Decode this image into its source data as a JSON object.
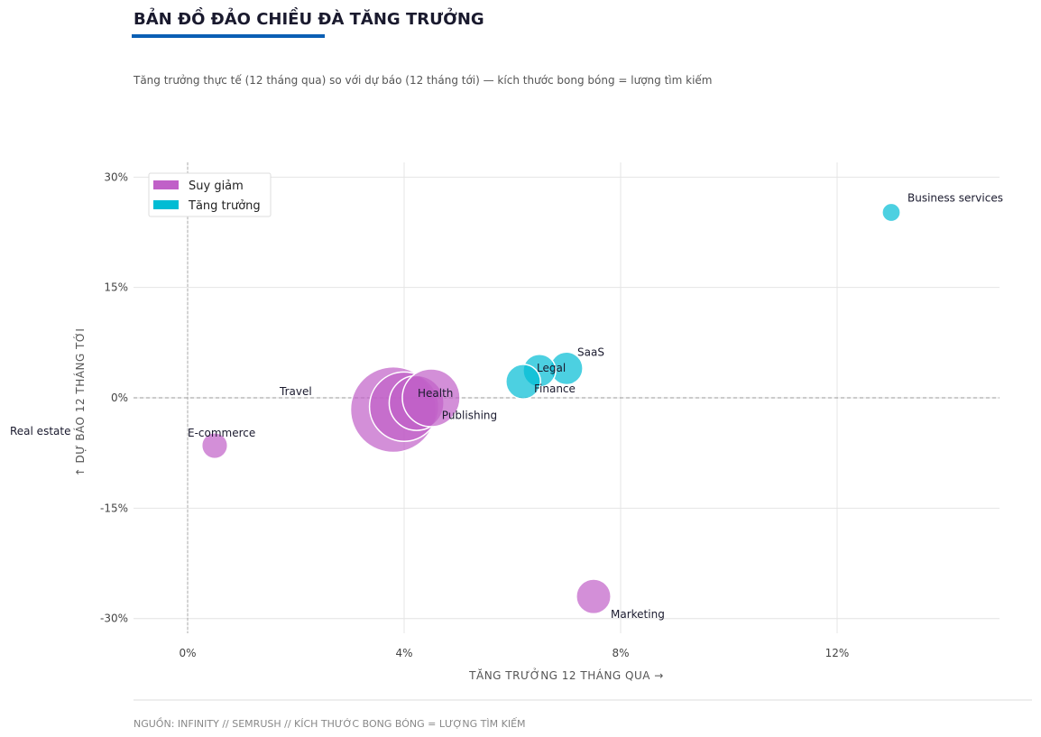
{
  "chart_data": {
    "type": "bubble",
    "title": "BẢN ĐỒ ĐẢO CHIỀU ĐÀ TĂNG TRƯỞNG",
    "subtitle": "Tăng trưởng thực tế (12 tháng qua) so với dự báo (12 tháng tới) — kích thước bong bóng = lượng tìm kiếm",
    "x_label": "TĂNG TRƯỞNG 12 THÁNG QUA  →",
    "y_label": "↑  DỰ BÁO 12 THÁNG TỚI",
    "source": "NGUỒN: INFINITY  //  SEMRUSH  //  KÍCH THƯỚC BONG BÓNG = LƯỢNG TÌM KIẾM",
    "xlim": [
      -1,
      15
    ],
    "ylim": [
      -32,
      32
    ],
    "xticks": [
      {
        "value": 0,
        "label": "0%"
      },
      {
        "value": 4,
        "label": "4%"
      },
      {
        "value": 8,
        "label": "8%"
      },
      {
        "value": 12,
        "label": "12%"
      }
    ],
    "yticks": [
      {
        "value": 30,
        "label": "30%"
      },
      {
        "value": 15,
        "label": "15%"
      },
      {
        "value": 0,
        "label": "0%"
      },
      {
        "value": -15,
        "label": "-15%"
      },
      {
        "value": -30,
        "label": "-30%"
      }
    ],
    "grid": true,
    "legend": "upper left",
    "series": [
      {
        "name": "Suy giảm",
        "color": "#c060c8",
        "point_labels": [
          "Real estate",
          "Travel",
          "Publishing",
          "Health",
          "E-commerce",
          "Marketing"
        ],
        "x": [
          3.8,
          4.0,
          4.23,
          4.5,
          0.5,
          7.5
        ],
        "values": [
          -1.6,
          -1.2,
          -0.7,
          0,
          -6.5,
          -27
        ],
        "sizes": [
          220,
          144,
          90,
          100,
          20,
          36
        ]
      },
      {
        "name": "Tăng trưởng",
        "color": "#00bcd4",
        "point_labels": [
          "Business services",
          "SaaS",
          "Legal",
          "Finance"
        ],
        "x": [
          13,
          7.0,
          6.5,
          6.2
        ],
        "values": [
          25.2,
          4.0,
          3.7,
          2.2
        ],
        "sizes": [
          10,
          32,
          32,
          36
        ]
      }
    ]
  }
}
